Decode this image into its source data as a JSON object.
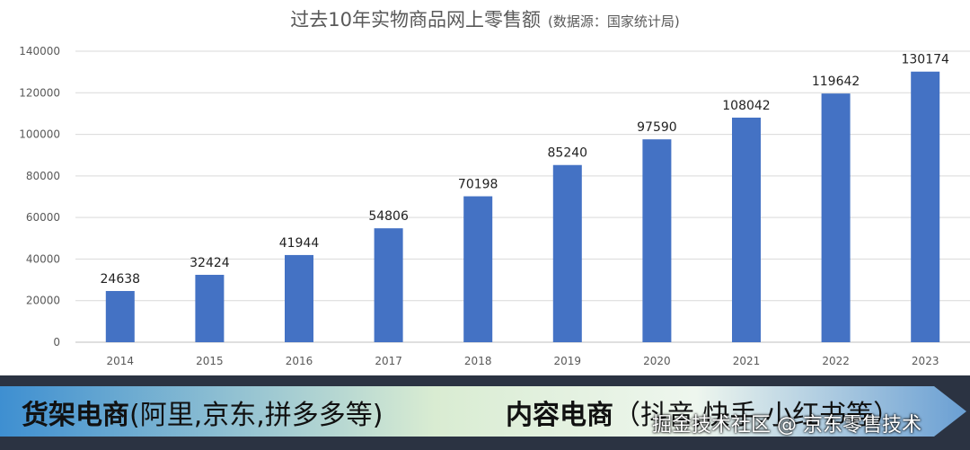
{
  "chart_data": {
    "type": "bar",
    "title": "过去10年实物商品网上零售额",
    "subtitle": "(数据源：国家统计局)",
    "categories": [
      "2014",
      "2015",
      "2016",
      "2017",
      "2018",
      "2019",
      "2020",
      "2021",
      "2022",
      "2023"
    ],
    "values": [
      24638,
      32424,
      41944,
      54806,
      70198,
      85240,
      97590,
      108042,
      119642,
      130174
    ],
    "ylim": [
      0,
      140000
    ],
    "yticks": [
      0,
      20000,
      40000,
      60000,
      80000,
      100000,
      120000,
      140000
    ],
    "xlabel": "",
    "ylabel": "",
    "grid": true,
    "bar_color": "#4472c4",
    "data_labels": true
  },
  "banner": {
    "left_bold": "货架电商",
    "left_rest": "(阿里,京东,拼多多等)",
    "right_bold": "内容电商",
    "right_rest": "（抖音,快手,小红书等）",
    "gradient_start": "#3e8fd1",
    "gradient_mid": "#d9ecd2",
    "gradient_end": "#6a9fd3"
  },
  "watermark": "掘金技术社区 @ 京东零售技术"
}
